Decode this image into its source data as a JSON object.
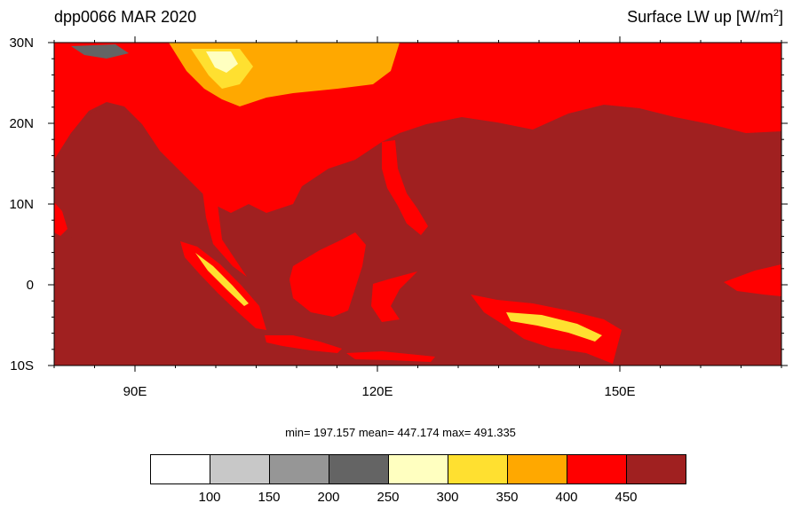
{
  "header": {
    "left_title": "dpp0066 MAR 2020",
    "right_title_prefix": "Surface LW up [W/m",
    "right_title_sup": "2",
    "right_title_suffix": "]"
  },
  "axes": {
    "lat_labels": [
      "30N",
      "20N",
      "10N",
      "0",
      "10S"
    ],
    "lon_labels": [
      "90E",
      "120E",
      "150E"
    ],
    "lat_range": [
      -10,
      30
    ],
    "lon_range": [
      80,
      170
    ]
  },
  "stats": {
    "text": "min= 197.157  mean= 447.174  max= 491.335"
  },
  "colorbar": {
    "colors": [
      "#ffffff",
      "#c8c8c8",
      "#969696",
      "#646464",
      "#ffffc0",
      "#ffe030",
      "#ffa800",
      "#ff0000",
      "#a02020"
    ],
    "labels": [
      "100",
      "150",
      "200",
      "250",
      "300",
      "350",
      "400",
      "450"
    ]
  },
  "colors": {
    "ocean": "#a02020",
    "land_warm": "#ff0000",
    "land_mid": "#ffa800",
    "land_cool": "#ffe030",
    "land_pale": "#ffffc0",
    "land_grey": "#646464"
  }
}
